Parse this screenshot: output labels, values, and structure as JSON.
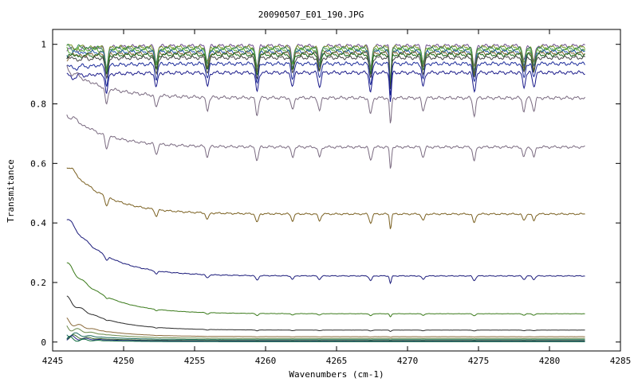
{
  "chart_data": {
    "type": "line",
    "title": "20090507_E01_190.JPG",
    "xlabel": "Wavenumbers (cm-1)",
    "ylabel": "Transmitance",
    "xlim": [
      4245,
      4285
    ],
    "ylim": [
      -0.03,
      1.05
    ],
    "x_ticks": [
      "4245",
      "4250",
      "4255",
      "4260",
      "4265",
      "4270",
      "4275",
      "4280",
      "4285"
    ],
    "y_ticks": [
      "0",
      "0.2",
      "0.4",
      "0.6",
      "0.8",
      "1"
    ],
    "grid": false,
    "legend": "none",
    "x_range_data": [
      4246,
      4282.5
    ],
    "absorption_lines": [
      4248.8,
      4252.3,
      4255.9,
      4259.4,
      4261.9,
      4263.8,
      4267.4,
      4268.8,
      4271.1,
      4274.7,
      4278.2,
      4278.9
    ],
    "series": [
      {
        "color": "#6b4a8a",
        "start": 0.98,
        "plateau": 0.995
      },
      {
        "color": "#7a9a2a",
        "start": 0.99,
        "plateau": 0.99
      },
      {
        "color": "#3a8a5a",
        "start": 0.99,
        "plateau": 0.985
      },
      {
        "color": "#5aaa3a",
        "start": 0.98,
        "plateau": 0.98
      },
      {
        "color": "#2a5aaa",
        "start": 0.97,
        "plateau": 0.975
      },
      {
        "color": "#8a6a3a",
        "start": 0.96,
        "plateau": 0.97
      },
      {
        "color": "#1a6a1a",
        "start": 0.96,
        "plateau": 0.965
      },
      {
        "color": "#444444",
        "start": 0.95,
        "plateau": 0.955
      },
      {
        "color": "#1a2a9a",
        "start": 0.92,
        "plateau": 0.935
      },
      {
        "color": "#1a1a8a",
        "start": 0.89,
        "plateau": 0.905
      },
      {
        "color": "#7a6a80",
        "start": 0.92,
        "plateau": 0.82
      },
      {
        "color": "#7a6a80",
        "start": 0.77,
        "plateau": 0.655
      },
      {
        "color": "#7a6020",
        "start": 0.6,
        "plateau": 0.43
      },
      {
        "color": "#1a1a7a",
        "start": 0.42,
        "plateau": 0.222
      },
      {
        "color": "#3a7a1a",
        "start": 0.265,
        "plateau": 0.095
      },
      {
        "color": "#2a2a2a",
        "start": 0.145,
        "plateau": 0.04
      },
      {
        "color": "#8a6a3a",
        "start": 0.07,
        "plateau": 0.018
      },
      {
        "color": "#6a8a4a",
        "start": 0.05,
        "plateau": 0.012
      },
      {
        "color": "#1a6a5a",
        "start": 0.03,
        "plateau": 0.008
      },
      {
        "color": "#3a6a2a",
        "start": 0.02,
        "plateau": 0.005
      },
      {
        "color": "#2a2a8a",
        "start": 0.015,
        "plateau": 0.003
      },
      {
        "color": "#0a6a3a",
        "start": 0.01,
        "plateau": 0.001
      }
    ]
  }
}
